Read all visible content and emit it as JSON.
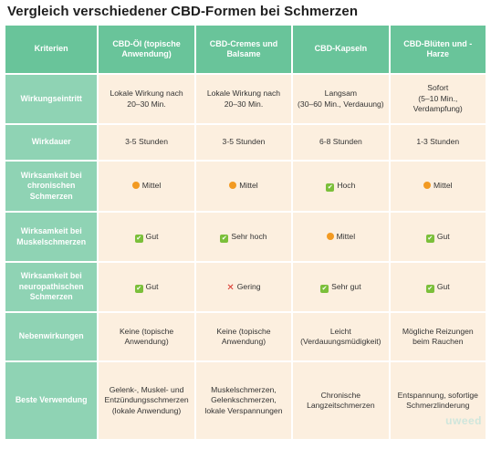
{
  "title": "Vergleich verschiedener CBD-Formen bei Schmerzen",
  "columns": [
    "Kriterien",
    "CBD-Öl (topische Anwendung)",
    "CBD-Cremes und Balsame",
    "CBD-Kapseln",
    "CBD-Blüten und -Harze"
  ],
  "rows": [
    {
      "label": "Wirkungseintritt",
      "cells": [
        {
          "text": "Lokale Wirkung nach 20–30 Min."
        },
        {
          "text": "Lokale Wirkung nach 20–30 Min."
        },
        {
          "text": "Langsam\n(30–60 Min., Verdauung)"
        },
        {
          "text": "Sofort\n(5–10 Min., Verdampfung)"
        }
      ]
    },
    {
      "label": "Wirkdauer",
      "cells": [
        {
          "text": "3-5 Stunden"
        },
        {
          "text": "3-5 Stunden"
        },
        {
          "text": "6-8 Stunden"
        },
        {
          "text": "1-3 Stunden"
        }
      ]
    },
    {
      "label": "Wirksamkeit bei chronischen Schmerzen",
      "cells": [
        {
          "icon": "orange-dot-icon",
          "text": "Mittel"
        },
        {
          "icon": "orange-dot-icon",
          "text": "Mittel"
        },
        {
          "icon": "green-check-icon",
          "text": "Hoch"
        },
        {
          "icon": "orange-dot-icon",
          "text": "Mittel"
        }
      ]
    },
    {
      "label": "Wirksamkeit bei Muskelschmerzen",
      "cells": [
        {
          "icon": "green-check-icon",
          "text": "Gut"
        },
        {
          "icon": "green-check-icon",
          "text": "Sehr hoch"
        },
        {
          "icon": "orange-dot-icon",
          "text": "Mittel"
        },
        {
          "icon": "green-check-icon",
          "text": "Gut"
        }
      ]
    },
    {
      "label": "Wirksamkeit bei neuropathischen Schmerzen",
      "cells": [
        {
          "icon": "green-check-icon",
          "text": "Gut"
        },
        {
          "icon": "red-cross-icon",
          "text": "Gering"
        },
        {
          "icon": "green-check-icon",
          "text": "Sehr gut"
        },
        {
          "icon": "green-check-icon",
          "text": "Gut"
        }
      ]
    },
    {
      "label": "Nebenwirkungen",
      "cells": [
        {
          "text": "Keine (topische Anwendung)"
        },
        {
          "text": "Keine (topische Anwendung)"
        },
        {
          "text": "Leicht\n(Verdauungsmüdigkeit)"
        },
        {
          "text": "Mögliche Reizungen beim Rauchen"
        }
      ]
    },
    {
      "label": "Beste Verwendung",
      "cells": [
        {
          "text": "Gelenk-, Muskel- und Entzündungsschmerzen (lokale Anwendung)"
        },
        {
          "text": "Muskelschmerzen, Gelenkschmerzen, lokale Verspannungen"
        },
        {
          "text": "Chronische Langzeitschmerzen"
        },
        {
          "text": "Entspannung, sofortige Schmerzlinderung"
        }
      ]
    }
  ],
  "logo": "uweed",
  "colors": {
    "header": "#69c49a",
    "row_label": "#8fd3b4",
    "cell": "#fcefdf",
    "dot": "#f29a22",
    "check": "#7bbf3a",
    "cross": "#d9342b"
  }
}
